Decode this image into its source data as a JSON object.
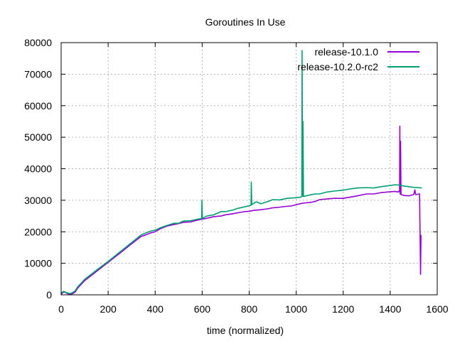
{
  "chart_data": {
    "type": "line",
    "title": "Goroutines In Use",
    "xlabel": "time (normalized)",
    "ylabel": "",
    "xlim": [
      0,
      1600
    ],
    "ylim": [
      0,
      80000
    ],
    "x_ticks": [
      0,
      200,
      400,
      600,
      800,
      1000,
      1200,
      1400,
      1600
    ],
    "y_ticks": [
      0,
      10000,
      20000,
      30000,
      40000,
      50000,
      60000,
      70000,
      80000
    ],
    "grid": true,
    "legend_position": "top-right",
    "series": [
      {
        "name": "release-10.1.0",
        "color": "#9400d3",
        "points": [
          [
            0,
            200
          ],
          [
            10,
            900
          ],
          [
            20,
            700
          ],
          [
            30,
            300
          ],
          [
            40,
            200
          ],
          [
            50,
            400
          ],
          [
            60,
            900
          ],
          [
            70,
            2100
          ],
          [
            80,
            2900
          ],
          [
            100,
            4500
          ],
          [
            150,
            7400
          ],
          [
            200,
            10300
          ],
          [
            250,
            13200
          ],
          [
            300,
            16200
          ],
          [
            340,
            18500
          ],
          [
            360,
            19000
          ],
          [
            380,
            19600
          ],
          [
            400,
            20000
          ],
          [
            420,
            20900
          ],
          [
            450,
            21800
          ],
          [
            480,
            22300
          ],
          [
            500,
            22600
          ],
          [
            520,
            23000
          ],
          [
            550,
            23100
          ],
          [
            580,
            23700
          ],
          [
            600,
            24000
          ],
          [
            620,
            24300
          ],
          [
            650,
            24800
          ],
          [
            680,
            25000
          ],
          [
            700,
            25400
          ],
          [
            730,
            25700
          ],
          [
            750,
            26000
          ],
          [
            780,
            26400
          ],
          [
            800,
            26500
          ],
          [
            820,
            26800
          ],
          [
            850,
            27000
          ],
          [
            880,
            27300
          ],
          [
            900,
            27600
          ],
          [
            930,
            27800
          ],
          [
            950,
            28000
          ],
          [
            980,
            28200
          ],
          [
            1000,
            28600
          ],
          [
            1030,
            29100
          ],
          [
            1060,
            29300
          ],
          [
            1080,
            29600
          ],
          [
            1100,
            30200
          ],
          [
            1130,
            30400
          ],
          [
            1160,
            30600
          ],
          [
            1200,
            30600
          ],
          [
            1230,
            31000
          ],
          [
            1260,
            31400
          ],
          [
            1300,
            32000
          ],
          [
            1330,
            32000
          ],
          [
            1360,
            32400
          ],
          [
            1400,
            32700
          ],
          [
            1420,
            32800
          ],
          [
            1435,
            32600
          ],
          [
            1440,
            33200
          ],
          [
            1441,
            53500
          ],
          [
            1442,
            32000
          ],
          [
            1444,
            48700
          ],
          [
            1446,
            31800
          ],
          [
            1460,
            31500
          ],
          [
            1480,
            31400
          ],
          [
            1500,
            31800
          ],
          [
            1505,
            33300
          ],
          [
            1508,
            31800
          ],
          [
            1525,
            32000
          ],
          [
            1527,
            19000
          ],
          [
            1529,
            6500
          ],
          [
            1531,
            19000
          ]
        ]
      },
      {
        "name": "release-10.2.0-rc2",
        "color": "#009e73",
        "points": [
          [
            0,
            500
          ],
          [
            10,
            1100
          ],
          [
            20,
            800
          ],
          [
            30,
            500
          ],
          [
            40,
            400
          ],
          [
            50,
            800
          ],
          [
            60,
            1300
          ],
          [
            70,
            2500
          ],
          [
            80,
            3300
          ],
          [
            100,
            4900
          ],
          [
            150,
            7800
          ],
          [
            200,
            10600
          ],
          [
            250,
            13600
          ],
          [
            300,
            16600
          ],
          [
            340,
            19000
          ],
          [
            360,
            19600
          ],
          [
            380,
            20200
          ],
          [
            400,
            20500
          ],
          [
            420,
            21200
          ],
          [
            450,
            22000
          ],
          [
            480,
            22700
          ],
          [
            500,
            22700
          ],
          [
            520,
            23400
          ],
          [
            550,
            23500
          ],
          [
            580,
            24000
          ],
          [
            598,
            24200
          ],
          [
            599,
            30000
          ],
          [
            601,
            24300
          ],
          [
            620,
            25000
          ],
          [
            650,
            25400
          ],
          [
            680,
            26400
          ],
          [
            700,
            26400
          ],
          [
            730,
            26900
          ],
          [
            750,
            27400
          ],
          [
            780,
            27900
          ],
          [
            808,
            28400
          ],
          [
            809,
            35800
          ],
          [
            811,
            28600
          ],
          [
            830,
            29500
          ],
          [
            850,
            28900
          ],
          [
            880,
            29600
          ],
          [
            900,
            30200
          ],
          [
            930,
            30100
          ],
          [
            960,
            30600
          ],
          [
            1000,
            30800
          ],
          [
            1020,
            31000
          ],
          [
            1024,
            31200
          ],
          [
            1025,
            77500
          ],
          [
            1027,
            31300
          ],
          [
            1029,
            55000
          ],
          [
            1031,
            31200
          ],
          [
            1060,
            31700
          ],
          [
            1080,
            32000
          ],
          [
            1100,
            32000
          ],
          [
            1130,
            32600
          ],
          [
            1160,
            32900
          ],
          [
            1200,
            33200
          ],
          [
            1230,
            33600
          ],
          [
            1260,
            33900
          ],
          [
            1300,
            34000
          ],
          [
            1330,
            33900
          ],
          [
            1360,
            34300
          ],
          [
            1400,
            34700
          ],
          [
            1420,
            34900
          ],
          [
            1440,
            34800
          ],
          [
            1460,
            34500
          ],
          [
            1480,
            34300
          ],
          [
            1500,
            34100
          ],
          [
            1520,
            34000
          ],
          [
            1535,
            33900
          ]
        ]
      }
    ]
  }
}
